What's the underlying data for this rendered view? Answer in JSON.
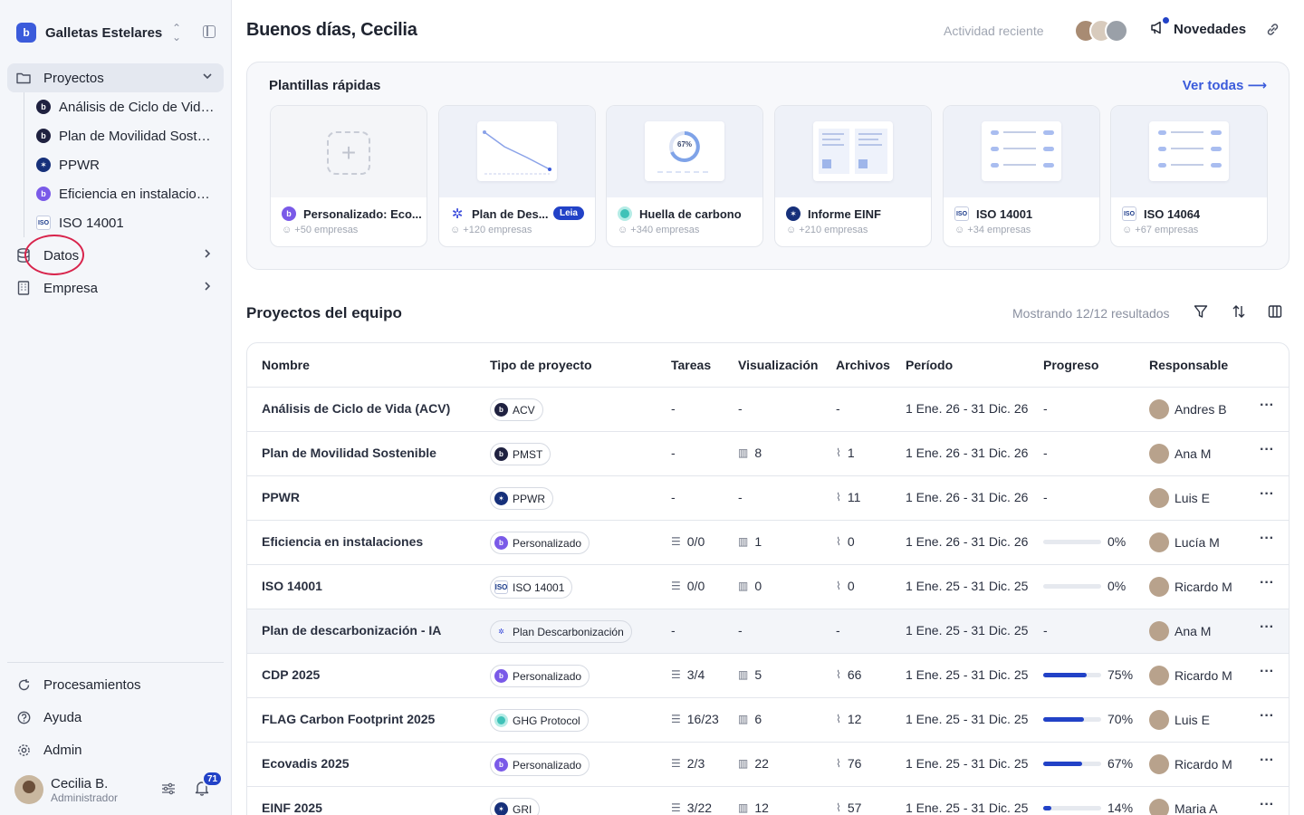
{
  "sidebar": {
    "org_name": "Galletas Estelares",
    "org_logo_letter": "b",
    "nav": {
      "projects": "Proyectos",
      "data": "Datos",
      "company": "Empresa"
    },
    "project_items": [
      {
        "label": "Análisis de Ciclo de Vida (ACV)",
        "icon": "navy-logo-icon"
      },
      {
        "label": "Plan de Movilidad Sostenible",
        "icon": "navy-logo-icon"
      },
      {
        "label": "PPWR",
        "icon": "eu-flag-icon"
      },
      {
        "label": "Eficiencia en instalaciones",
        "icon": "purple-logo-icon"
      },
      {
        "label": "ISO 14001",
        "icon": "iso-icon"
      }
    ],
    "bottom": {
      "processing": "Procesamientos",
      "help": "Ayuda",
      "admin": "Admin"
    },
    "user": {
      "name": "Cecilia B.",
      "role": "Administrador",
      "notifications": "71"
    }
  },
  "header": {
    "greeting": "Buenos días, Cecilia",
    "recent_activity": "Actividad reciente",
    "news": "Novedades"
  },
  "templates": {
    "title": "Plantillas rápidas",
    "see_all": "Ver todas ⟶",
    "cards": [
      {
        "name": "Personalizado: Eco...",
        "companies": "+50 empresas",
        "icon": "purple-logo-icon"
      },
      {
        "name": "Plan de Des...",
        "companies": "+120 empresas",
        "icon": "snowflake-icon",
        "badge": "Leia"
      },
      {
        "name": "Huella de carbono",
        "companies": "+340 empresas",
        "icon": "teal-circle-icon",
        "gauge": "67%"
      },
      {
        "name": "Informe EINF",
        "companies": "+210 empresas",
        "icon": "eu-flag-icon"
      },
      {
        "name": "ISO 14001",
        "companies": "+34 empresas",
        "icon": "iso-icon"
      },
      {
        "name": "ISO 14064",
        "companies": "+67 empresas",
        "icon": "iso-icon"
      }
    ]
  },
  "projects": {
    "title": "Proyectos del equipo",
    "showing": "Mostrando 12/12 resultados",
    "columns": [
      "Nombre",
      "Tipo de proyecto",
      "Tareas",
      "Visualización",
      "Archivos",
      "Período",
      "Progreso",
      "Responsable"
    ],
    "rows": [
      {
        "name": "Análisis de Ciclo de Vida (ACV)",
        "type": "ACV",
        "type_icon": "navy",
        "tasks": "-",
        "views": "-",
        "files": "-",
        "period": "1 Ene. 26 - 31 Dic. 26",
        "progress_label": "-",
        "progress": null,
        "owner": "Andres B"
      },
      {
        "name": "Plan de Movilidad Sostenible",
        "type": "PMST",
        "type_icon": "navy",
        "tasks": "-",
        "views": "8",
        "files": "1",
        "period": "1 Ene. 26 - 31 Dic. 26",
        "progress_label": "-",
        "progress": null,
        "owner": "Ana M"
      },
      {
        "name": "PPWR",
        "type": "PPWR",
        "type_icon": "eu",
        "tasks": "-",
        "views": "-",
        "files": "11",
        "period": "1 Ene. 26 - 31 Dic. 26",
        "progress_label": "-",
        "progress": null,
        "owner": "Luis E"
      },
      {
        "name": "Eficiencia en instalaciones",
        "type": "Personalizado",
        "type_icon": "purple",
        "tasks": "0/0",
        "views": "1",
        "files": "0",
        "period": "1 Ene. 26 - 31 Dic. 26",
        "progress_label": "0%",
        "progress": 0,
        "owner": "Lucía M"
      },
      {
        "name": "ISO 14001",
        "type": "ISO 14001",
        "type_icon": "iso",
        "tasks": "0/0",
        "views": "0",
        "files": "0",
        "period": "1 Ene. 25 - 31 Dic. 25",
        "progress_label": "0%",
        "progress": 0,
        "owner": "Ricardo M"
      },
      {
        "name": "Plan de descarbonización - IA",
        "type": "Plan Descarbonización",
        "type_icon": "snow",
        "tasks": "-",
        "views": "-",
        "files": "-",
        "period": "1 Ene. 25 - 31 Dic. 25",
        "progress_label": "-",
        "progress": null,
        "owner": "Ana M"
      },
      {
        "name": "CDP 2025",
        "type": "Personalizado",
        "type_icon": "purple",
        "tasks": "3/4",
        "views": "5",
        "files": "66",
        "period": "1 Ene. 25 - 31 Dic. 25",
        "progress_label": "75%",
        "progress": 75,
        "owner": "Ricardo M"
      },
      {
        "name": "FLAG Carbon Footprint 2025",
        "type": "GHG Protocol",
        "type_icon": "teal",
        "tasks": "16/23",
        "views": "6",
        "files": "12",
        "period": "1 Ene. 25 - 31 Dic. 25",
        "progress_label": "70%",
        "progress": 70,
        "owner": "Luis E"
      },
      {
        "name": "Ecovadis 2025",
        "type": "Personalizado",
        "type_icon": "purple",
        "tasks": "2/3",
        "views": "22",
        "files": "76",
        "period": "1 Ene. 25 - 31 Dic. 25",
        "progress_label": "67%",
        "progress": 67,
        "owner": "Ricardo M"
      },
      {
        "name": "EINF 2025",
        "type": "GRI",
        "type_icon": "eu",
        "tasks": "3/22",
        "views": "12",
        "files": "57",
        "period": "1 Ene. 25 - 31 Dic. 25",
        "progress_label": "14%",
        "progress": 14,
        "owner": "Maria A"
      }
    ]
  }
}
